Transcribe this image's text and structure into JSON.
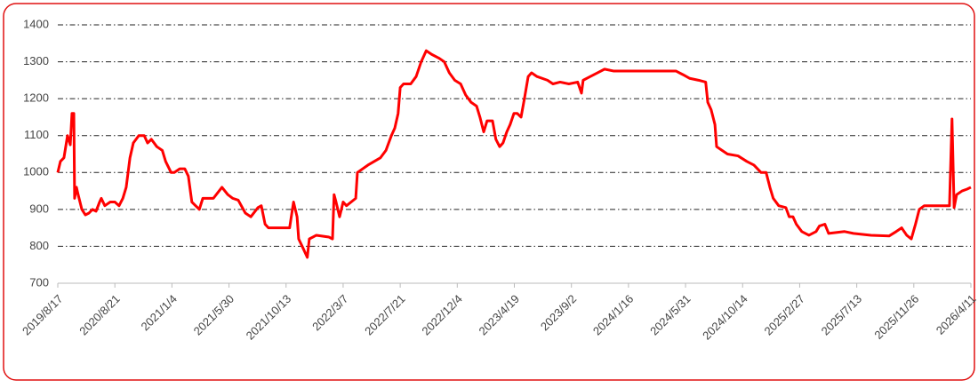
{
  "chart_data": {
    "type": "line",
    "color": "#ff0000",
    "grid": true,
    "grid_style": "dashdot",
    "xlim": [
      "2019/8/17",
      "2026/4/11"
    ],
    "xticks": [
      "2019/8/17",
      "2020/8/21",
      "2021/1/4",
      "2021/5/30",
      "2021/10/13",
      "2022/3/7",
      "2022/7/21",
      "2022/12/4",
      "2023/4/19",
      "2023/9/2",
      "2024/1/16",
      "2024/5/31",
      "2024/10/14",
      "2025/2/27",
      "2025/7/13",
      "2025/11/26",
      "2026/4/11"
    ],
    "ylim": [
      700,
      1400
    ],
    "yticks": [
      700,
      800,
      900,
      1000,
      1100,
      1200,
      1300,
      1400
    ],
    "x": [
      "2019/8/17",
      "2019/9/3",
      "2019/9/26",
      "2019/10/19",
      "2019/11/6",
      "2019/11/17",
      "2019/11/29",
      "2019/12/4",
      "2019/12/16",
      "2019/12/27",
      "2020/1/20",
      "2020/2/12",
      "2020/3/6",
      "2020/3/29",
      "2020/4/21",
      "2020/5/14",
      "2020/5/25",
      "2020/6/17",
      "2020/7/22",
      "2020/8/21",
      "2020/8/31",
      "2020/9/9",
      "2020/9/17",
      "2020/9/26",
      "2020/10/4",
      "2020/10/17",
      "2020/10/30",
      "2020/11/7",
      "2020/11/16",
      "2020/11/29",
      "2020/12/12",
      "2020/12/20",
      "2021/1/2",
      "2021/1/10",
      "2021/1/24",
      "2021/2/6",
      "2021/2/15",
      "2021/2/24",
      "2021/3/15",
      "2021/3/24",
      "2021/4/20",
      "2021/5/12",
      "2021/5/27",
      "2021/6/8",
      "2021/6/21",
      "2021/7/8",
      "2021/7/21",
      "2021/8/7",
      "2021/8/15",
      "2021/8/24",
      "2021/9/1",
      "2021/10/5",
      "2021/10/22",
      "2021/11/1",
      "2021/11/10",
      "2021/11/14",
      "2021/11/23",
      "2021/12/6",
      "2021/12/11",
      "2021/12/29",
      "2022/1/30",
      "2022/2/8",
      "2022/2/12",
      "2022/2/17",
      "2022/2/26",
      "2022/3/7",
      "2022/3/15",
      "2022/4/6",
      "2022/4/10",
      "2022/5/5",
      "2022/6/4",
      "2022/6/17",
      "2022/6/30",
      "2022/7/8",
      "2022/7/16",
      "2022/7/21",
      "2022/7/29",
      "2022/8/15",
      "2022/8/28",
      "2022/9/9",
      "2022/9/21",
      "2022/10/4",
      "2022/10/21",
      "2022/11/3",
      "2022/11/15",
      "2022/11/28",
      "2022/12/12",
      "2022/12/24",
      "2023/1/6",
      "2023/1/19",
      "2023/1/27",
      "2023/2/5",
      "2023/2/13",
      "2023/2/26",
      "2023/3/6",
      "2023/3/15",
      "2023/3/23",
      "2023/4/1",
      "2023/4/9",
      "2023/4/18",
      "2023/4/26",
      "2023/5/5",
      "2023/5/13",
      "2023/5/22",
      "2023/5/30",
      "2023/6/12",
      "2023/7/7",
      "2023/7/20",
      "2023/8/6",
      "2023/8/27",
      "2023/9/17",
      "2023/9/26",
      "2023/9/30",
      "2023/10/17",
      "2023/11/3",
      "2023/11/20",
      "2023/12/11",
      "2024/2/13",
      "2024/5/8",
      "2024/5/25",
      "2024/6/10",
      "2024/7/1",
      "2024/7/18",
      "2024/7/23",
      "2024/7/31",
      "2024/8/9",
      "2024/8/13",
      "2024/8/26",
      "2024/9/8",
      "2024/10/3",
      "2024/10/24",
      "2024/11/10",
      "2024/11/27",
      "2024/12/9",
      "2024/12/18",
      "2024/12/26",
      "2025/1/8",
      "2025/1/25",
      "2025/2/2",
      "2025/2/11",
      "2025/2/19",
      "2025/3/4",
      "2025/3/21",
      "2025/4/7",
      "2025/4/15",
      "2025/4/28",
      "2025/5/7",
      "2025/6/14",
      "2025/7/5",
      "2025/8/16",
      "2025/9/28",
      "2025/10/15",
      "2025/10/28",
      "2025/11/9",
      "2025/11/20",
      "2025/11/30",
      "2025/12/9",
      "2025/12/21",
      "2026/2/19",
      "2026/2/25",
      "2026/3/2",
      "2026/3/8",
      "2026/3/21",
      "2026/4/2",
      "2026/4/11"
    ],
    "values": [
      1000,
      1030,
      1040,
      1100,
      1075,
      1160,
      1160,
      930,
      960,
      940,
      900,
      885,
      890,
      900,
      895,
      920,
      930,
      910,
      920,
      920,
      910,
      930,
      960,
      1040,
      1080,
      1100,
      1100,
      1080,
      1090,
      1070,
      1060,
      1030,
      1000,
      1000,
      1010,
      1010,
      990,
      920,
      900,
      930,
      930,
      960,
      940,
      930,
      925,
      890,
      880,
      905,
      910,
      860,
      850,
      850,
      850,
      920,
      880,
      820,
      800,
      770,
      820,
      830,
      825,
      820,
      940,
      920,
      880,
      920,
      910,
      930,
      1000,
      1020,
      1040,
      1060,
      1100,
      1120,
      1160,
      1230,
      1240,
      1240,
      1260,
      1300,
      1330,
      1320,
      1310,
      1300,
      1270,
      1250,
      1240,
      1210,
      1190,
      1180,
      1150,
      1110,
      1140,
      1140,
      1090,
      1070,
      1080,
      1110,
      1130,
      1160,
      1160,
      1150,
      1200,
      1260,
      1270,
      1260,
      1250,
      1240,
      1245,
      1240,
      1245,
      1215,
      1250,
      1260,
      1270,
      1280,
      1275,
      1275,
      1275,
      1265,
      1255,
      1250,
      1245,
      1190,
      1170,
      1130,
      1070,
      1060,
      1050,
      1045,
      1030,
      1020,
      1000,
      1000,
      960,
      930,
      910,
      905,
      880,
      880,
      860,
      840,
      830,
      840,
      855,
      860,
      835,
      840,
      835,
      830,
      828,
      840,
      850,
      830,
      820,
      860,
      900,
      910,
      910,
      1145,
      905,
      940,
      950,
      955,
      960
    ]
  }
}
